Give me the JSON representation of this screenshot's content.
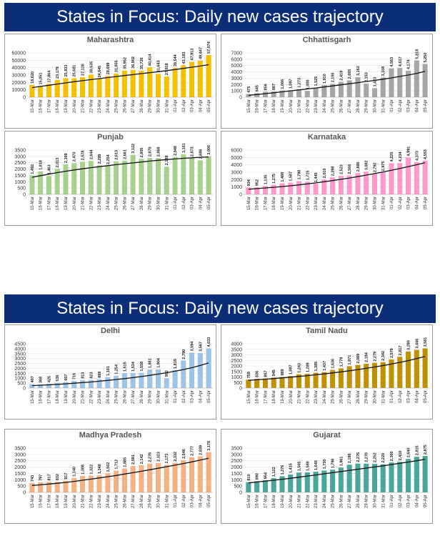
{
  "slides": [
    {
      "title": "States in Focus: Daily new cases trajectory"
    },
    {
      "title": "States in Focus: Daily new cases trajectory"
    }
  ],
  "dates": [
    "15-Mar",
    "16-Mar",
    "17-Mar",
    "18-Mar",
    "19-Mar",
    "20-Mar",
    "21-Mar",
    "22-Mar",
    "23-Mar",
    "24-Mar",
    "25-Mar",
    "26-Mar",
    "27-Mar",
    "28-Mar",
    "29-Mar",
    "30-Mar",
    "31-Mar",
    "01-Apr",
    "02-Apr",
    "03-Apr",
    "04-Apr",
    "05-Apr"
  ],
  "chart_data": [
    {
      "type": "bar",
      "title": "Maharashtra",
      "color": "#f5c000",
      "ylim": [
        0,
        60000
      ],
      "yticks": [
        0,
        10000,
        20000,
        30000,
        40000,
        50000,
        60000
      ],
      "values": [
        16620,
        15051,
        17864,
        23179,
        25833,
        25681,
        27126,
        30535,
        24645,
        28699,
        31855,
        35952,
        36902,
        35726,
        40414,
        31643,
        27918,
        39544,
        43183,
        47913,
        49447,
        57074
      ],
      "trend": [
        13000,
        14600,
        16200,
        17800,
        19400,
        21000,
        22400,
        23800,
        25200,
        26600,
        28000,
        29300,
        30600,
        31900,
        33200,
        34500,
        36000,
        37500,
        39000,
        40600,
        42200,
        44000
      ]
    },
    {
      "type": "bar",
      "title": "Chhattisgarh",
      "color": "#a6a6a6",
      "ylim": [
        0,
        7000
      ],
      "yticks": [
        0,
        1000,
        2000,
        3000,
        4000,
        5000,
        6000,
        7000
      ],
      "values": [
        475,
        645,
        856,
        887,
        1066,
        1097,
        1273,
        1000,
        1525,
        1910,
        2106,
        2419,
        2665,
        3162,
        2153,
        1423,
        3108,
        4563,
        4617,
        4174,
        5818,
        5250
      ],
      "trend": [
        300,
        420,
        560,
        700,
        850,
        1000,
        1150,
        1300,
        1460,
        1620,
        1780,
        1950,
        2120,
        2300,
        2480,
        2650,
        2850,
        3050,
        3280,
        3500,
        3750,
        4100
      ]
    },
    {
      "type": "bar",
      "title": "Punjab",
      "color": "#a9d18e",
      "ylim": [
        0,
        3500
      ],
      "yticks": [
        0,
        500,
        1000,
        1500,
        2000,
        2500,
        3000,
        3500
      ],
      "values": [
        1492,
        1818,
        1463,
        2013,
        2369,
        2470,
        2578,
        2644,
        2299,
        2254,
        2613,
        2661,
        3122,
        2805,
        2870,
        2868,
        2188,
        2948,
        3161,
        2873,
        2686,
        3006
      ],
      "trend": [
        1350,
        1480,
        1600,
        1720,
        1830,
        1930,
        2020,
        2110,
        2190,
        2270,
        2350,
        2420,
        2490,
        2560,
        2630,
        2690,
        2750,
        2800,
        2850,
        2890,
        2930,
        2960
      ]
    },
    {
      "type": "bar",
      "title": "Karnataka",
      "color": "#ff99cc",
      "ylim": [
        0,
        6000
      ],
      "yticks": [
        0,
        1000,
        2000,
        3000,
        4000,
        5000,
        6000
      ],
      "values": [
        934,
        952,
        1135,
        1275,
        1488,
        1587,
        1798,
        1715,
        1445,
        2010,
        2298,
        2523,
        2566,
        2886,
        3082,
        2792,
        2975,
        4225,
        4234,
        4991,
        4373,
        4553
      ],
      "trend": [
        700,
        780,
        870,
        960,
        1060,
        1170,
        1290,
        1420,
        1560,
        1710,
        1870,
        2040,
        2220,
        2410,
        2610,
        2820,
        3040,
        3270,
        3510,
        3760,
        4020,
        4300
      ]
    },
    {
      "type": "bar",
      "title": "Delhi",
      "color": "#9dc3e6",
      "ylim": [
        0,
        4500
      ],
      "yticks": [
        0,
        500,
        1000,
        1500,
        2000,
        2500,
        3000,
        3500,
        4000,
        4500
      ],
      "values": [
        407,
        368,
        425,
        536,
        607,
        716,
        813,
        823,
        888,
        1101,
        1254,
        1515,
        1534,
        1558,
        1881,
        1904,
        992,
        1819,
        2790,
        3594,
        3567,
        4033
      ],
      "trend": [
        250,
        290,
        330,
        380,
        430,
        490,
        550,
        620,
        700,
        780,
        870,
        960,
        1060,
        1170,
        1290,
        1420,
        1560,
        1710,
        1880,
        2070,
        2290,
        2550
      ]
    },
    {
      "type": "bar",
      "title": "Tamil Nadu",
      "color": "#bf9000",
      "ylim": [
        0,
        4000
      ],
      "yticks": [
        0,
        500,
        1000,
        1500,
        2000,
        2500,
        3000,
        3500,
        4000
      ],
      "values": [
        759,
        836,
        867,
        945,
        989,
        1087,
        1243,
        1289,
        1385,
        1437,
        1636,
        1779,
        1971,
        2089,
        2194,
        2279,
        2342,
        2579,
        2817,
        3290,
        3446,
        3581
      ],
      "trend": [
        700,
        750,
        800,
        860,
        920,
        980,
        1050,
        1120,
        1200,
        1280,
        1370,
        1460,
        1560,
        1670,
        1780,
        1900,
        2030,
        2170,
        2320,
        2480,
        2660,
        2860
      ]
    },
    {
      "type": "bar",
      "title": "Madhya Pradesh",
      "color": "#f4b183",
      "ylim": [
        0,
        3500
      ],
      "yticks": [
        0,
        500,
        1000,
        1500,
        2000,
        2500,
        3000,
        3500
      ],
      "values": [
        743,
        797,
        817,
        832,
        917,
        1140,
        1308,
        1322,
        1348,
        1502,
        1712,
        1885,
        2091,
        2142,
        2276,
        2323,
        2173,
        2332,
        2546,
        2777,
        2839,
        3178
      ],
      "trend": [
        550,
        600,
        660,
        720,
        790,
        870,
        960,
        1050,
        1140,
        1240,
        1340,
        1450,
        1560,
        1670,
        1790,
        1910,
        2030,
        2150,
        2280,
        2410,
        2550,
        2700
      ]
    },
    {
      "type": "bar",
      "title": "Gujarat",
      "color": "#4aa59a",
      "ylim": [
        0,
        3500
      ],
      "yticks": [
        0,
        500,
        1000,
        1500,
        2000,
        2500,
        3000,
        3500
      ],
      "values": [
        810,
        890,
        954,
        1122,
        1276,
        1415,
        1565,
        1580,
        1640,
        1730,
        1790,
        1961,
        2190,
        2276,
        2270,
        2252,
        2220,
        2360,
        2410,
        2640,
        2815,
        2875
      ],
      "trend": [
        750,
        820,
        890,
        960,
        1040,
        1120,
        1200,
        1290,
        1380,
        1470,
        1560,
        1650,
        1740,
        1830,
        1920,
        2010,
        2100,
        2200,
        2300,
        2400,
        2500,
        2620
      ]
    }
  ]
}
